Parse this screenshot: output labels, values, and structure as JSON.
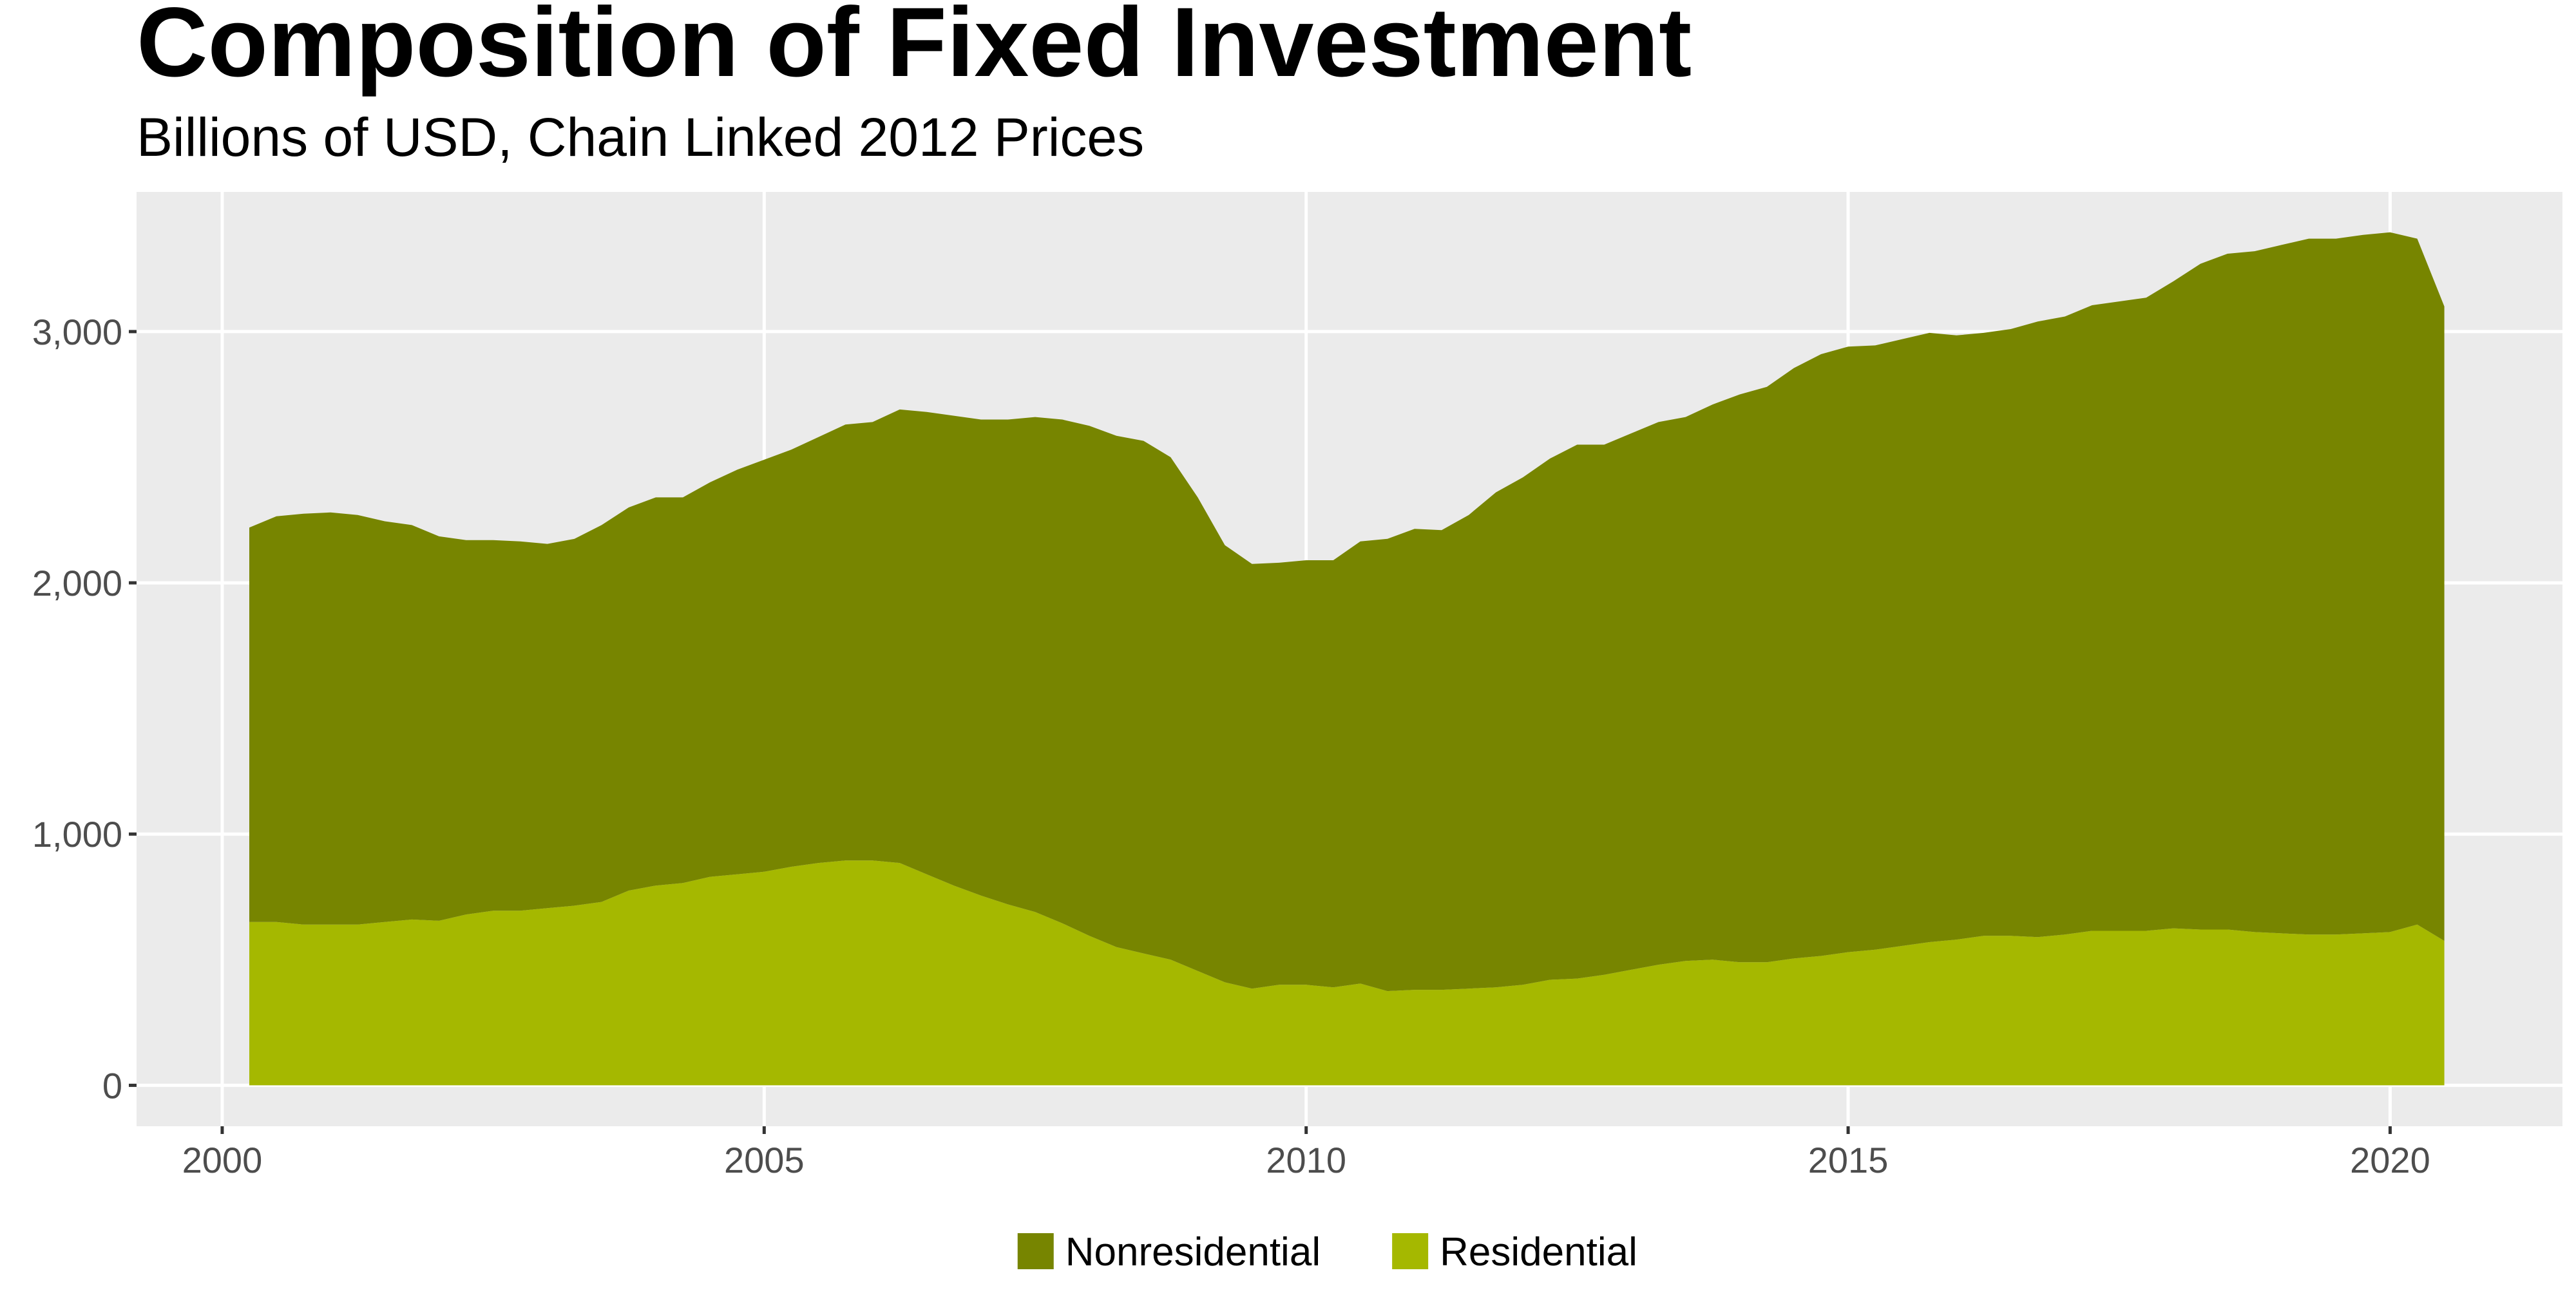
{
  "chart_data": {
    "type": "stacked-area",
    "title": "Composition of Fixed Investment",
    "subtitle": "Billions of USD, Chain Linked 2012 Prices",
    "x": [
      2000.25,
      2000.5,
      2000.75,
      2001,
      2001.25,
      2001.5,
      2001.75,
      2002,
      2002.25,
      2002.5,
      2002.75,
      2003,
      2003.25,
      2003.5,
      2003.75,
      2004,
      2004.25,
      2004.5,
      2004.75,
      2005,
      2005.25,
      2005.5,
      2005.75,
      2006,
      2006.25,
      2006.5,
      2006.75,
      2007,
      2007.25,
      2007.5,
      2007.75,
      2008,
      2008.25,
      2008.5,
      2008.75,
      2009,
      2009.25,
      2009.5,
      2009.75,
      2010,
      2010.25,
      2010.5,
      2010.75,
      2011,
      2011.25,
      2011.5,
      2011.75,
      2012,
      2012.25,
      2012.5,
      2012.75,
      2013,
      2013.25,
      2013.5,
      2013.75,
      2014,
      2014.25,
      2014.5,
      2014.75,
      2015,
      2015.25,
      2015.5,
      2015.75,
      2016,
      2016.25,
      2016.5,
      2016.75,
      2017,
      2017.25,
      2017.5,
      2017.75,
      2018,
      2018.25,
      2018.5,
      2018.75,
      2019,
      2019.25,
      2019.5,
      2019.75,
      2020,
      2020.25,
      2020.5
    ],
    "series": [
      {
        "name": "Nonresidential",
        "color": "#778500",
        "values": [
          1570,
          1615,
          1635,
          1640,
          1630,
          1595,
          1570,
          1530,
          1490,
          1475,
          1470,
          1450,
          1460,
          1500,
          1525,
          1545,
          1535,
          1570,
          1610,
          1640,
          1660,
          1695,
          1735,
          1745,
          1805,
          1840,
          1870,
          1895,
          1930,
          1970,
          2005,
          2030,
          2035,
          2040,
          2000,
          1885,
          1740,
          1690,
          1680,
          1690,
          1700,
          1760,
          1800,
          1835,
          1830,
          1885,
          1970,
          2020,
          2075,
          2125,
          2110,
          2135,
          2160,
          2165,
          2210,
          2260,
          2290,
          2350,
          2395,
          2410,
          2405,
          2415,
          2425,
          2405,
          2400,
          2415,
          2450,
          2460,
          2490,
          2505,
          2520,
          2575,
          2650,
          2690,
          2710,
          2740,
          2770,
          2770,
          2780,
          2785,
          2730,
          2525
        ]
      },
      {
        "name": "Residential",
        "color": "#a5b800",
        "values": [
          650,
          650,
          640,
          640,
          640,
          650,
          660,
          655,
          680,
          695,
          695,
          705,
          715,
          730,
          775,
          795,
          805,
          830,
          840,
          850,
          870,
          885,
          895,
          895,
          885,
          840,
          795,
          755,
          720,
          690,
          645,
          595,
          550,
          525,
          500,
          455,
          410,
          385,
          400,
          400,
          390,
          405,
          375,
          380,
          380,
          385,
          390,
          400,
          420,
          425,
          440,
          460,
          480,
          495,
          500,
          490,
          490,
          505,
          515,
          530,
          540,
          555,
          570,
          580,
          595,
          595,
          590,
          600,
          615,
          615,
          615,
          625,
          620,
          620,
          610,
          605,
          600,
          600,
          605,
          610,
          640,
          575
        ]
      }
    ],
    "xlim": [
      1999.21,
      2021.59
    ],
    "xticks": [
      2000,
      2005,
      2010,
      2015,
      2020
    ],
    "ylim": [
      -163,
      3556
    ],
    "yticks": [
      0,
      {
        "value": 1000,
        "label": "1,000"
      },
      {
        "value": 2000,
        "label": "2,000"
      },
      {
        "value": 3000,
        "label": "3,000"
      }
    ],
    "grid": true,
    "legend": "bottom"
  }
}
